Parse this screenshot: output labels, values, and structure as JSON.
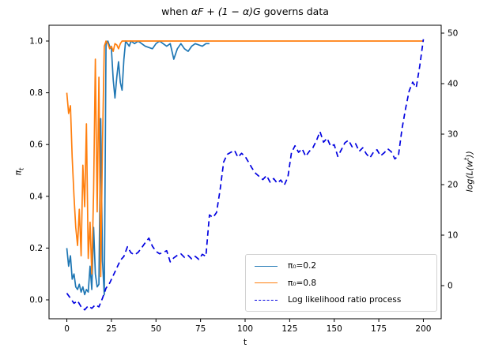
{
  "figure": {
    "title": {
      "pre": "when ",
      "math": "αF + (1 − α)G",
      "post": " governs data"
    },
    "xlabel": "t",
    "ylabel_left": {
      "main": "π",
      "sub": "t"
    },
    "ylabel_right": {
      "pre": "log(L(w",
      "sup": "t",
      "post": "))"
    }
  },
  "legend": {
    "position": "lower right",
    "entries": [
      {
        "label": "π₀=0.2",
        "color": "#1f77b4",
        "style": "solid"
      },
      {
        "label": "π₀=0.8",
        "color": "#ff7f0e",
        "style": "solid"
      },
      {
        "label": "Log likelihood ratio process",
        "color": "#0000e0",
        "style": "dashed"
      }
    ]
  },
  "chart_data": {
    "type": "line",
    "title": "when αF + (1 − α)G governs data",
    "xlabel": "t",
    "ylabel_left": "π_t",
    "ylabel_right": "log(L(w^t))",
    "background": "#ffffff",
    "grid": false,
    "xlim": [
      -10,
      210
    ],
    "ylim_left": [
      -0.0732,
      1.061
    ],
    "ylim_right": [
      -6.56,
      51.56
    ],
    "xticks": [
      0,
      25,
      50,
      75,
      100,
      125,
      150,
      175,
      200
    ],
    "yticks_left": [
      "0.0",
      "0.2",
      "0.4",
      "0.6",
      "0.8",
      "1.0"
    ],
    "yticks_right": [
      0,
      10,
      20,
      30,
      40,
      50
    ],
    "legend_position": "lower right",
    "series": [
      {
        "name": "π₀=0.2",
        "axis": "left",
        "color": "#1f77b4",
        "style": "solid",
        "x": [
          0,
          1,
          2,
          3,
          4,
          5,
          6,
          7,
          8,
          9,
          10,
          11,
          12,
          13,
          14,
          15,
          16,
          17,
          18,
          19,
          20,
          21,
          22,
          23,
          24,
          25,
          26,
          27,
          28,
          29,
          30,
          31,
          32,
          33,
          34,
          35,
          36,
          38,
          40,
          42,
          44,
          46,
          48,
          50,
          52,
          54,
          56,
          58,
          60,
          62,
          64,
          66,
          68,
          70,
          72,
          74,
          76,
          78,
          80
        ],
        "y": [
          0.2,
          0.13,
          0.17,
          0.08,
          0.1,
          0.05,
          0.04,
          0.06,
          0.03,
          0.05,
          0.02,
          0.04,
          0.03,
          0.13,
          0.04,
          0.28,
          0.1,
          0.05,
          0.06,
          0.7,
          0.15,
          0.02,
          0.99,
          1.0,
          0.98,
          0.97,
          0.85,
          0.78,
          0.86,
          0.92,
          0.84,
          0.81,
          0.93,
          1.0,
          0.99,
          0.98,
          1.0,
          0.99,
          1.0,
          0.99,
          0.98,
          0.975,
          0.97,
          0.99,
          1.0,
          0.99,
          0.98,
          0.99,
          0.93,
          0.97,
          0.99,
          0.97,
          0.96,
          0.98,
          0.99,
          0.985,
          0.98,
          0.99,
          0.99
        ]
      },
      {
        "name": "π₀=0.8",
        "axis": "left",
        "color": "#ff7f0e",
        "style": "solid",
        "x": [
          0,
          1,
          2,
          3,
          4,
          5,
          6,
          7,
          8,
          9,
          10,
          11,
          12,
          13,
          14,
          15,
          16,
          17,
          18,
          19,
          20,
          21,
          22,
          23,
          24,
          25,
          26,
          27,
          28,
          29,
          30,
          31,
          32,
          35,
          40,
          45,
          50,
          55,
          60,
          65,
          70,
          75,
          80,
          85,
          90,
          95,
          100,
          105,
          110,
          115,
          120,
          125,
          130,
          135,
          140,
          145,
          150,
          155,
          160,
          165,
          170,
          175,
          180,
          185,
          190,
          195,
          200
        ],
        "y": [
          0.8,
          0.72,
          0.75,
          0.55,
          0.4,
          0.28,
          0.21,
          0.35,
          0.17,
          0.52,
          0.36,
          0.68,
          0.16,
          0.3,
          0.1,
          0.42,
          0.93,
          0.34,
          0.86,
          0.09,
          0.6,
          0.98,
          1.0,
          0.99,
          0.97,
          0.98,
          0.96,
          0.99,
          0.985,
          0.97,
          0.99,
          1.0,
          1.0,
          1.0,
          1.0,
          1.0,
          1.0,
          1.0,
          1.0,
          1.0,
          1.0,
          1.0,
          1.0,
          1.0,
          1.0,
          1.0,
          1.0,
          1.0,
          1.0,
          1.0,
          1.0,
          1.0,
          1.0,
          1.0,
          1.0,
          1.0,
          1.0,
          1.0,
          1.0,
          1.0,
          1.0,
          1.0,
          1.0,
          1.0,
          1.0,
          1.0,
          1.0
        ]
      },
      {
        "name": "Log likelihood ratio process",
        "axis": "right",
        "color": "#0000e0",
        "style": "dashed",
        "x": [
          0,
          2,
          4,
          6,
          8,
          10,
          12,
          14,
          16,
          18,
          20,
          22,
          24,
          26,
          28,
          30,
          32,
          34,
          36,
          38,
          40,
          42,
          44,
          46,
          48,
          50,
          52,
          54,
          56,
          58,
          60,
          62,
          64,
          66,
          68,
          70,
          72,
          74,
          76,
          78,
          80,
          82,
          84,
          86,
          88,
          90,
          92,
          94,
          96,
          98,
          100,
          102,
          104,
          106,
          108,
          110,
          112,
          114,
          116,
          118,
          120,
          122,
          124,
          126,
          128,
          130,
          132,
          134,
          136,
          138,
          140,
          142,
          144,
          146,
          148,
          150,
          152,
          154,
          156,
          158,
          160,
          162,
          164,
          166,
          168,
          170,
          172,
          174,
          176,
          178,
          180,
          182,
          184,
          186,
          188,
          190,
          192,
          194,
          196,
          198,
          200
        ],
        "y": [
          -1.5,
          -2.5,
          -3.5,
          -3.0,
          -4.2,
          -4.8,
          -4.0,
          -4.5,
          -3.8,
          -4.2,
          -2.5,
          -0.5,
          0.5,
          2.0,
          3.5,
          5.0,
          5.8,
          7.7,
          6.5,
          6.1,
          6.6,
          7.5,
          8.5,
          9.4,
          7.8,
          6.8,
          6.3,
          6.6,
          6.9,
          4.7,
          5.5,
          6.0,
          6.3,
          5.6,
          6.0,
          5.3,
          5.8,
          5.2,
          6.2,
          5.8,
          14.0,
          13.5,
          14.5,
          19.0,
          24.5,
          26.0,
          26.4,
          26.8,
          25.4,
          26.2,
          25.6,
          24.4,
          23.2,
          22.2,
          21.6,
          21.0,
          21.8,
          20.5,
          21.2,
          20.3,
          20.9,
          19.9,
          21.5,
          26.3,
          27.7,
          26.4,
          27.1,
          25.6,
          26.6,
          27.3,
          28.7,
          30.5,
          28.4,
          29.2,
          27.6,
          27.9,
          25.6,
          26.9,
          28.3,
          28.8,
          27.5,
          28.1,
          26.6,
          27.3,
          26.1,
          25.3,
          26.4,
          26.9,
          25.7,
          26.3,
          27.1,
          26.5,
          25.1,
          25.7,
          31.0,
          35.0,
          38.5,
          40.3,
          39.2,
          43.5,
          48.8
        ]
      }
    ]
  }
}
